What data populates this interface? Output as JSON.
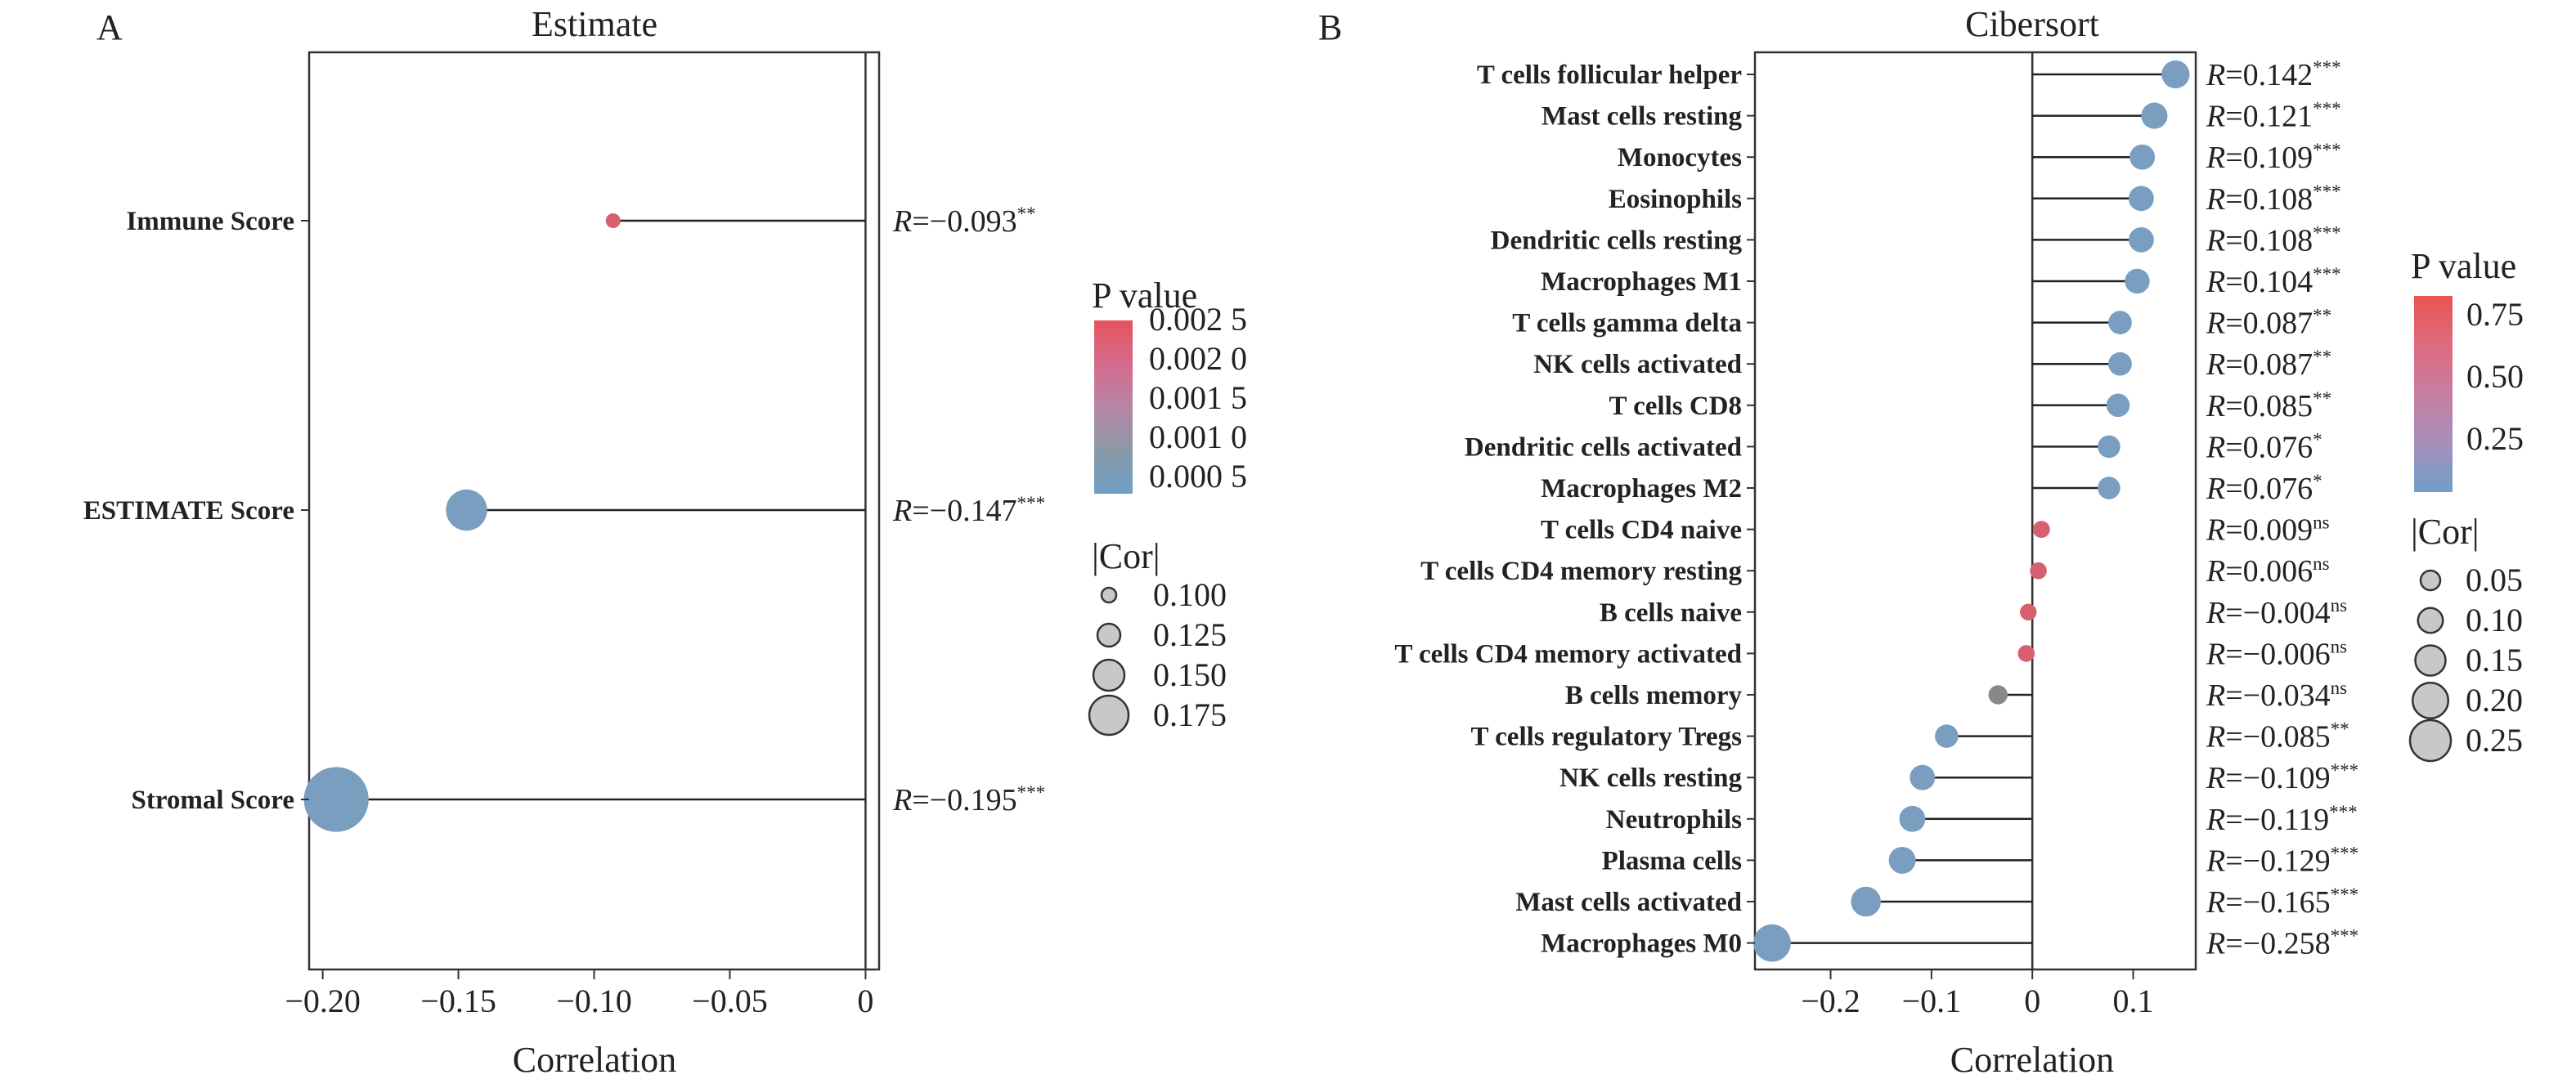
{
  "colors": {
    "significant": "#7a9ec0",
    "not_significant_low": "#d8606e",
    "not_significant_mid": "#888888",
    "gradient_a": [
      "#6f9fc8",
      "#8a9aa6",
      "#b785a6",
      "#d56a8c",
      "#e8525c"
    ],
    "gradient_b": [
      "#6f9fc8",
      "#a78fbc",
      "#c77ea0",
      "#dd6b80",
      "#ea5354"
    ]
  },
  "charts": [
    {
      "panel_label": "A",
      "type": "lollipop",
      "title": "Estimate",
      "xlabel": "Correlation",
      "xlim": [
        -0.205,
        0.005
      ],
      "xticks": [
        "-0.20",
        "-0.15",
        "-0.10",
        "-0.05",
        "0"
      ],
      "xtick_values": [
        -0.2,
        -0.15,
        -0.1,
        -0.05,
        0
      ],
      "categories": [
        "Immune Score",
        "ESTIMATE Score",
        "Stromal Score"
      ],
      "values": [
        -0.093,
        -0.147,
        -0.195
      ],
      "r_labels": [
        "R=−0.093",
        "R=−0.147",
        "R=−0.195"
      ],
      "significance": [
        "**",
        "***",
        "***"
      ],
      "point_colors": [
        "#d8606e",
        "#7a9ec0",
        "#7a9ec0"
      ],
      "legend": {
        "pvalue_title": "P value",
        "pvalue_ticks": [
          "0.002 5",
          "0.002 0",
          "0.001 5",
          "0.001 0",
          "0.000 5"
        ],
        "size_title": "|Cor|",
        "size_ticks": [
          "0.100",
          "0.125",
          "0.150",
          "0.175"
        ],
        "size_values": [
          0.1,
          0.125,
          0.15,
          0.175
        ]
      }
    },
    {
      "panel_label": "B",
      "type": "lollipop",
      "title": "Cibersort",
      "xlabel": "Correlation",
      "xlim": [
        -0.275,
        0.162
      ],
      "xticks": [
        "-0.2",
        "-0.1",
        "0",
        "0.1"
      ],
      "xtick_values": [
        -0.2,
        -0.1,
        0,
        0.1
      ],
      "categories": [
        "T cells follicular helper",
        "Mast cells resting",
        "Monocytes",
        "Eosinophils",
        "Dendritic cells resting",
        "Macrophages M1",
        "T cells gamma delta",
        "NK cells activated",
        "T cells CD8",
        "Dendritic cells activated",
        "Macrophages M2",
        "T cells CD4 naive",
        "T cells CD4 memory resting",
        "B cells naive",
        "T cells CD4 memory activated",
        "B cells memory",
        "T cells regulatory Tregs",
        "NK cells resting",
        "Neutrophils",
        "Plasma cells",
        "Mast cells activated",
        "Macrophages M0"
      ],
      "values": [
        0.142,
        0.121,
        0.109,
        0.108,
        0.108,
        0.104,
        0.087,
        0.087,
        0.085,
        0.076,
        0.076,
        0.009,
        0.006,
        -0.004,
        -0.006,
        -0.034,
        -0.085,
        -0.109,
        -0.119,
        -0.129,
        -0.165,
        -0.258
      ],
      "r_labels": [
        "R=0.142",
        "R=0.121",
        "R=0.109",
        "R=0.108",
        "R=0.108",
        "R=0.104",
        "R=0.087",
        "R=0.087",
        "R=0.085",
        "R=0.076",
        "R=0.076",
        "R=0.009",
        "R=0.006",
        "R=−0.004",
        "R=−0.006",
        "R=−0.034",
        "R=−0.085",
        "R=−0.109",
        "R=−0.119",
        "R=−0.129",
        "R=−0.165",
        "R=−0.258"
      ],
      "significance": [
        "***",
        "***",
        "***",
        "***",
        "***",
        "***",
        "**",
        "**",
        "**",
        "*",
        "*",
        "ns",
        "ns",
        "ns",
        "ns",
        "ns",
        "**",
        "***",
        "***",
        "***",
        "***",
        "***"
      ],
      "point_colors": [
        "#7a9ec0",
        "#7a9ec0",
        "#7a9ec0",
        "#7a9ec0",
        "#7a9ec0",
        "#7a9ec0",
        "#7a9ec0",
        "#7a9ec0",
        "#7a9ec0",
        "#7a9ec0",
        "#7a9ec0",
        "#d8606e",
        "#d8606e",
        "#d8606e",
        "#d8606e",
        "#888888",
        "#7a9ec0",
        "#7a9ec0",
        "#7a9ec0",
        "#7a9ec0",
        "#7a9ec0",
        "#7a9ec0"
      ],
      "legend": {
        "pvalue_title": "P value",
        "pvalue_ticks": [
          "0.75",
          "0.50",
          "0.25"
        ],
        "size_title": "|Cor|",
        "size_ticks": [
          "0.05",
          "0.10",
          "0.15",
          "0.20",
          "0.25"
        ],
        "size_values": [
          0.05,
          0.1,
          0.15,
          0.2,
          0.25
        ]
      }
    }
  ]
}
